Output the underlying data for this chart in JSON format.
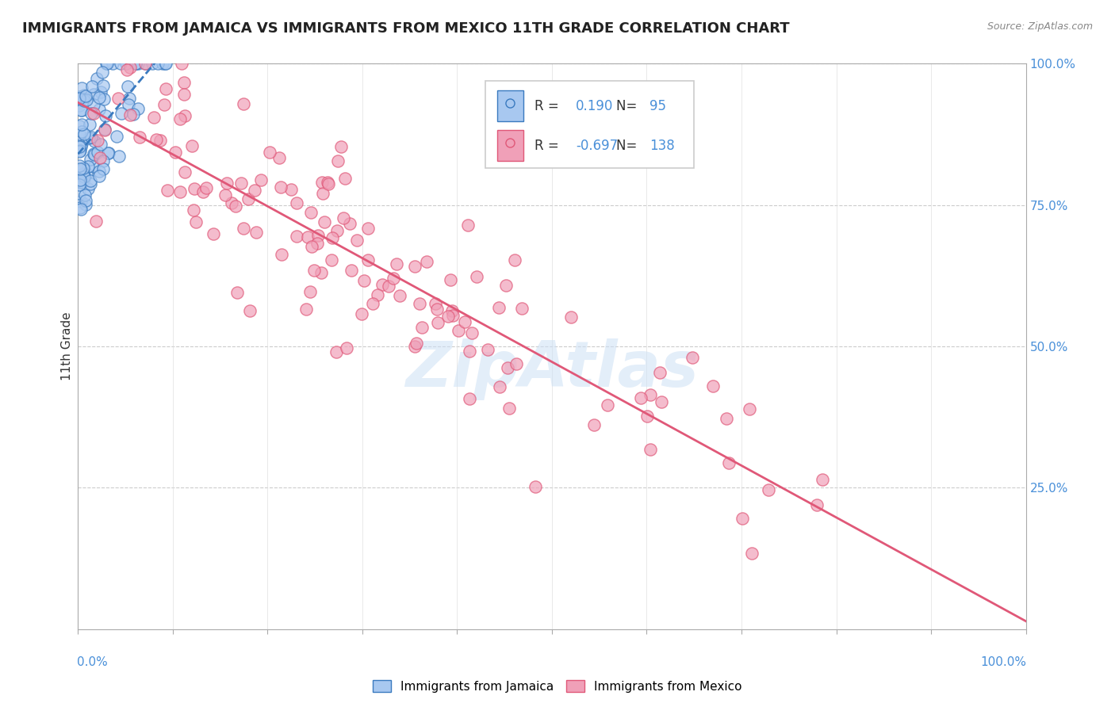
{
  "title": "IMMIGRANTS FROM JAMAICA VS IMMIGRANTS FROM MEXICO 11TH GRADE CORRELATION CHART",
  "source_text": "Source: ZipAtlas.com",
  "ylabel": "11th Grade",
  "right_yticks": [
    "100.0%",
    "75.0%",
    "50.0%",
    "25.0%"
  ],
  "right_ytick_vals": [
    1.0,
    0.75,
    0.5,
    0.25
  ],
  "legend_labels": [
    "Immigrants from Jamaica",
    "Immigrants from Mexico"
  ],
  "r_jamaica": 0.19,
  "n_jamaica": 95,
  "r_mexico": -0.697,
  "n_mexico": 138,
  "color_jamaica": "#a8c8f0",
  "color_mexico": "#f0a0b8",
  "color_jamaica_line": "#3a7abf",
  "color_mexico_line": "#e05878",
  "watermark_color": "#cce0f5",
  "seed_jamaica": 42,
  "seed_mexico": 77
}
